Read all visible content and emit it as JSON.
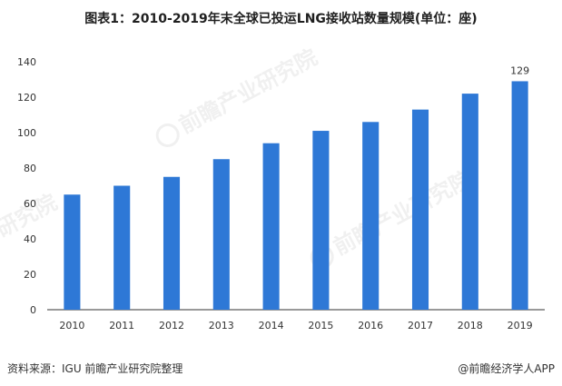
{
  "title": "图表1：2010-2019年末全球已投运LNG接收站数量规模(单位：座)",
  "source": "资料来源：IGU 前瞻产业研究院整理",
  "app_credit": "@前瞻经济学人APP",
  "watermark": {
    "brand": "前瞻产业研究院",
    "short": "研究院"
  },
  "colors": {
    "bar": "#2e78d6",
    "axis": "#333333",
    "text": "#333333"
  },
  "chart_data": {
    "type": "bar",
    "title": "图表1：2010-2019年末全球已投运LNG接收站数量规模(单位：座)",
    "xlabel": "",
    "ylabel": "",
    "categories": [
      "2010",
      "2011",
      "2012",
      "2013",
      "2014",
      "2015",
      "2016",
      "2017",
      "2018",
      "2019"
    ],
    "values": [
      65,
      70,
      75,
      85,
      94,
      101,
      106,
      113,
      122,
      129
    ],
    "data_labels": {
      "2019": "129"
    },
    "ylim": [
      0,
      140
    ],
    "yticks": [
      0,
      20,
      40,
      60,
      80,
      100,
      120,
      140
    ],
    "grid": false,
    "legend": "none"
  }
}
